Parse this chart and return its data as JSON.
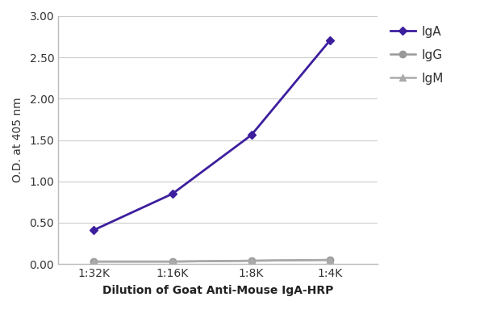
{
  "x_labels": [
    "1:32K",
    "1:16K",
    "1:8K",
    "1:4K"
  ],
  "x_values": [
    1,
    2,
    3,
    4
  ],
  "IgA_values": [
    0.41,
    0.85,
    1.56,
    2.71
  ],
  "IgG_values": [
    0.03,
    0.03,
    0.04,
    0.05
  ],
  "IgM_values": [
    0.03,
    0.03,
    0.04,
    0.05
  ],
  "IgA_color": "#3d1f9e",
  "IgG_color": "#999999",
  "IgM_color": "#aaaaaa",
  "ylabel": "O.D. at 405 nm",
  "xlabel": "Dilution of Goat Anti-Mouse IgA-HRP",
  "ylim": [
    0.0,
    3.0
  ],
  "yticks": [
    0.0,
    0.5,
    1.0,
    1.5,
    2.0,
    2.5,
    3.0
  ],
  "legend_labels": [
    "IgA",
    "IgG",
    "IgM"
  ],
  "background_color": "#ffffff",
  "grid_color": "#cccccc",
  "plot_bg_color": "#f5f5f5"
}
